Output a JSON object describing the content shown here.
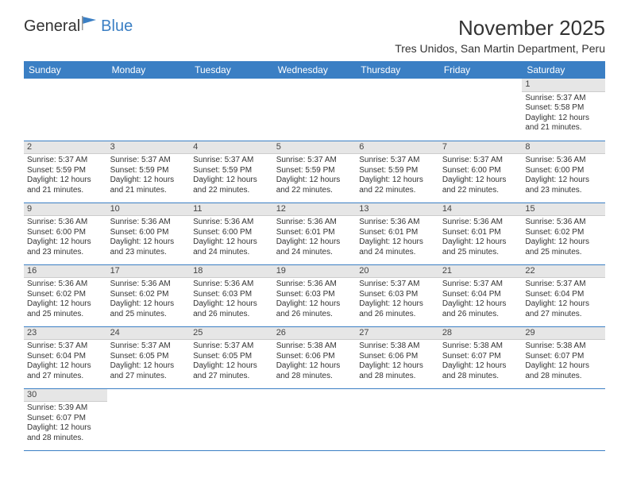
{
  "logo": {
    "text1": "General",
    "text2": "Blue"
  },
  "title": "November 2025",
  "location": "Tres Unidos, San Martin Department, Peru",
  "colors": {
    "header_bg": "#3b7fc4",
    "header_fg": "#ffffff",
    "daynum_bg": "#e6e6e6",
    "border": "#3b7fc4",
    "text": "#333333",
    "background": "#ffffff"
  },
  "weekdays": [
    "Sunday",
    "Monday",
    "Tuesday",
    "Wednesday",
    "Thursday",
    "Friday",
    "Saturday"
  ],
  "calendar": {
    "type": "table",
    "first_weekday_index": 6,
    "days": [
      {
        "n": 1,
        "sr": "5:37 AM",
        "ss": "5:58 PM",
        "dl": "12 hours and 21 minutes."
      },
      {
        "n": 2,
        "sr": "5:37 AM",
        "ss": "5:59 PM",
        "dl": "12 hours and 21 minutes."
      },
      {
        "n": 3,
        "sr": "5:37 AM",
        "ss": "5:59 PM",
        "dl": "12 hours and 21 minutes."
      },
      {
        "n": 4,
        "sr": "5:37 AM",
        "ss": "5:59 PM",
        "dl": "12 hours and 22 minutes."
      },
      {
        "n": 5,
        "sr": "5:37 AM",
        "ss": "5:59 PM",
        "dl": "12 hours and 22 minutes."
      },
      {
        "n": 6,
        "sr": "5:37 AM",
        "ss": "5:59 PM",
        "dl": "12 hours and 22 minutes."
      },
      {
        "n": 7,
        "sr": "5:37 AM",
        "ss": "6:00 PM",
        "dl": "12 hours and 22 minutes."
      },
      {
        "n": 8,
        "sr": "5:36 AM",
        "ss": "6:00 PM",
        "dl": "12 hours and 23 minutes."
      },
      {
        "n": 9,
        "sr": "5:36 AM",
        "ss": "6:00 PM",
        "dl": "12 hours and 23 minutes."
      },
      {
        "n": 10,
        "sr": "5:36 AM",
        "ss": "6:00 PM",
        "dl": "12 hours and 23 minutes."
      },
      {
        "n": 11,
        "sr": "5:36 AM",
        "ss": "6:00 PM",
        "dl": "12 hours and 24 minutes."
      },
      {
        "n": 12,
        "sr": "5:36 AM",
        "ss": "6:01 PM",
        "dl": "12 hours and 24 minutes."
      },
      {
        "n": 13,
        "sr": "5:36 AM",
        "ss": "6:01 PM",
        "dl": "12 hours and 24 minutes."
      },
      {
        "n": 14,
        "sr": "5:36 AM",
        "ss": "6:01 PM",
        "dl": "12 hours and 25 minutes."
      },
      {
        "n": 15,
        "sr": "5:36 AM",
        "ss": "6:02 PM",
        "dl": "12 hours and 25 minutes."
      },
      {
        "n": 16,
        "sr": "5:36 AM",
        "ss": "6:02 PM",
        "dl": "12 hours and 25 minutes."
      },
      {
        "n": 17,
        "sr": "5:36 AM",
        "ss": "6:02 PM",
        "dl": "12 hours and 25 minutes."
      },
      {
        "n": 18,
        "sr": "5:36 AM",
        "ss": "6:03 PM",
        "dl": "12 hours and 26 minutes."
      },
      {
        "n": 19,
        "sr": "5:36 AM",
        "ss": "6:03 PM",
        "dl": "12 hours and 26 minutes."
      },
      {
        "n": 20,
        "sr": "5:37 AM",
        "ss": "6:03 PM",
        "dl": "12 hours and 26 minutes."
      },
      {
        "n": 21,
        "sr": "5:37 AM",
        "ss": "6:04 PM",
        "dl": "12 hours and 26 minutes."
      },
      {
        "n": 22,
        "sr": "5:37 AM",
        "ss": "6:04 PM",
        "dl": "12 hours and 27 minutes."
      },
      {
        "n": 23,
        "sr": "5:37 AM",
        "ss": "6:04 PM",
        "dl": "12 hours and 27 minutes."
      },
      {
        "n": 24,
        "sr": "5:37 AM",
        "ss": "6:05 PM",
        "dl": "12 hours and 27 minutes."
      },
      {
        "n": 25,
        "sr": "5:37 AM",
        "ss": "6:05 PM",
        "dl": "12 hours and 27 minutes."
      },
      {
        "n": 26,
        "sr": "5:38 AM",
        "ss": "6:06 PM",
        "dl": "12 hours and 28 minutes."
      },
      {
        "n": 27,
        "sr": "5:38 AM",
        "ss": "6:06 PM",
        "dl": "12 hours and 28 minutes."
      },
      {
        "n": 28,
        "sr": "5:38 AM",
        "ss": "6:07 PM",
        "dl": "12 hours and 28 minutes."
      },
      {
        "n": 29,
        "sr": "5:38 AM",
        "ss": "6:07 PM",
        "dl": "12 hours and 28 minutes."
      },
      {
        "n": 30,
        "sr": "5:39 AM",
        "ss": "6:07 PM",
        "dl": "12 hours and 28 minutes."
      }
    ]
  },
  "labels": {
    "sunrise": "Sunrise:",
    "sunset": "Sunset:",
    "daylight": "Daylight:"
  }
}
